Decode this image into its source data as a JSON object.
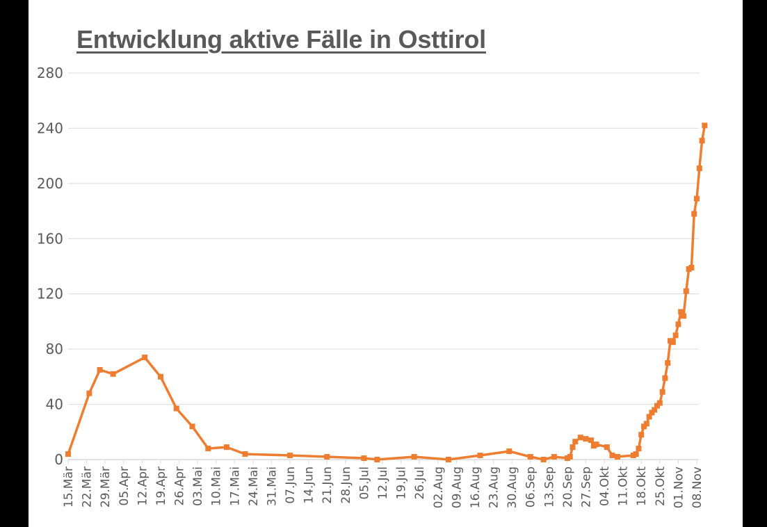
{
  "chart_data": {
    "type": "line",
    "title": "Entwicklung aktive Fälle in Osttirol",
    "xlabel": "",
    "ylabel": "",
    "ylim": [
      0,
      280
    ],
    "yticks": [
      0,
      40,
      80,
      120,
      160,
      200,
      240,
      280
    ],
    "grid": true,
    "legend": null,
    "series_color": "#ED7D31",
    "x_tick_labels": [
      "15.Mär",
      "22.Mär",
      "29.Mär",
      "05.Apr",
      "12.Apr",
      "19.Apr",
      "26.Apr",
      "03.Mai",
      "10.Mai",
      "17.Mai",
      "24.Mai",
      "31.Mai",
      "07.Jun",
      "14.Jun",
      "21.Jun",
      "28.Jun",
      "05.Jul",
      "12.Jul",
      "19.Jul",
      "26.Jul",
      "02.Aug",
      "09.Aug",
      "16.Aug",
      "23.Aug",
      "30.Aug",
      "06.Sep",
      "13.Sep",
      "20.Sep",
      "27.Sep",
      "04.Okt",
      "11.Okt",
      "18.Okt",
      "25.Okt",
      "01.Nov",
      "08.Nov"
    ],
    "series": [
      {
        "name": "Aktive Fälle",
        "points": [
          {
            "day": 0,
            "value": 4
          },
          {
            "day": 8,
            "value": 48
          },
          {
            "day": 12,
            "value": 65
          },
          {
            "day": 17,
            "value": 62
          },
          {
            "day": 29,
            "value": 74
          },
          {
            "day": 35,
            "value": 60
          },
          {
            "day": 41,
            "value": 37
          },
          {
            "day": 47,
            "value": 24
          },
          {
            "day": 53,
            "value": 8
          },
          {
            "day": 60,
            "value": 9
          },
          {
            "day": 67,
            "value": 4
          },
          {
            "day": 84,
            "value": 3
          },
          {
            "day": 98,
            "value": 2
          },
          {
            "day": 112,
            "value": 1
          },
          {
            "day": 117,
            "value": 0
          },
          {
            "day": 131,
            "value": 2
          },
          {
            "day": 144,
            "value": 0
          },
          {
            "day": 156,
            "value": 3
          },
          {
            "day": 167,
            "value": 6
          },
          {
            "day": 175,
            "value": 2
          },
          {
            "day": 180,
            "value": 0
          },
          {
            "day": 184,
            "value": 2
          },
          {
            "day": 189,
            "value": 1
          },
          {
            "day": 190,
            "value": 2
          },
          {
            "day": 191,
            "value": 9
          },
          {
            "day": 192,
            "value": 13
          },
          {
            "day": 194,
            "value": 16
          },
          {
            "day": 196,
            "value": 15
          },
          {
            "day": 198,
            "value": 14
          },
          {
            "day": 199,
            "value": 10
          },
          {
            "day": 200,
            "value": 11
          },
          {
            "day": 204,
            "value": 9
          },
          {
            "day": 206,
            "value": 3
          },
          {
            "day": 208,
            "value": 2
          },
          {
            "day": 214,
            "value": 3
          },
          {
            "day": 215,
            "value": 4
          },
          {
            "day": 216,
            "value": 8
          },
          {
            "day": 217,
            "value": 18
          },
          {
            "day": 218,
            "value": 24
          },
          {
            "day": 219,
            "value": 26
          },
          {
            "day": 220,
            "value": 31
          },
          {
            "day": 221,
            "value": 34
          },
          {
            "day": 222,
            "value": 36
          },
          {
            "day": 223,
            "value": 39
          },
          {
            "day": 224,
            "value": 41
          },
          {
            "day": 225,
            "value": 49
          },
          {
            "day": 226,
            "value": 59
          },
          {
            "day": 227,
            "value": 70
          },
          {
            "day": 228,
            "value": 86
          },
          {
            "day": 229,
            "value": 85
          },
          {
            "day": 230,
            "value": 90
          },
          {
            "day": 231,
            "value": 98
          },
          {
            "day": 232,
            "value": 107
          },
          {
            "day": 233,
            "value": 104
          },
          {
            "day": 234,
            "value": 122
          },
          {
            "day": 235,
            "value": 138
          },
          {
            "day": 236,
            "value": 139
          },
          {
            "day": 237,
            "value": 178
          },
          {
            "day": 238,
            "value": 189
          },
          {
            "day": 239,
            "value": 211
          },
          {
            "day": 240,
            "value": 231
          },
          {
            "day": 241,
            "value": 242
          }
        ]
      }
    ]
  }
}
